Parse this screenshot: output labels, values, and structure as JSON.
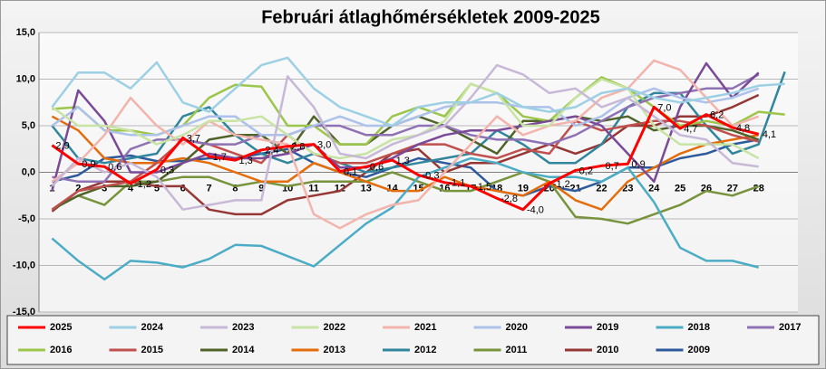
{
  "chart_data": {
    "type": "line",
    "title": "Februári átlaghőmérsékletek  2009-2025",
    "categories": [
      "1",
      "2",
      "3",
      "4",
      "5",
      "6",
      "7",
      "8",
      "9",
      "10",
      "11",
      "12",
      "13",
      "14",
      "15",
      "16",
      "17",
      "18",
      "19",
      "20",
      "21",
      "22",
      "23",
      "24",
      "25",
      "26",
      "27",
      "28",
      null
    ],
    "ylim": [
      -15,
      15
    ],
    "yticks": [
      {
        "value": -15,
        "label": "-15,0"
      },
      {
        "value": -10,
        "label": "-10,0"
      },
      {
        "value": -5,
        "label": "-5,0"
      },
      {
        "value": 0,
        "label": "0,0"
      },
      {
        "value": 5,
        "label": "5,0"
      },
      {
        "value": 10,
        "label": "10,0"
      },
      {
        "value": 15,
        "label": "15,0"
      }
    ],
    "grid": true,
    "legend": "bottom",
    "series": [
      {
        "name": "2025",
        "color": "#ff0000",
        "values": [
          2.9,
          0.9,
          0.6,
          -1.2,
          0.3,
          3.7,
          1.7,
          1.3,
          2.4,
          2.8,
          3.0,
          0.1,
          0.6,
          1.3,
          -0.3,
          -1.1,
          -1.5,
          -2.8,
          -4.0,
          -1.2,
          0.2,
          0.7,
          0.9,
          7.0,
          4.7,
          6.2,
          4.8,
          4.1,
          null
        ],
        "value_labels": [
          "2,9",
          "0,9",
          "0,6",
          "-1,2",
          "0,3",
          "3,7",
          "1,7",
          "1,3",
          "2,4",
          "2,8",
          "3,0",
          "0,1",
          "0,6",
          "1,3",
          "-0,3",
          "-1,1",
          "-1,5",
          "-2,8",
          "-4,0",
          "-1,2",
          "0,2",
          "0,7",
          "0,9",
          "7,0",
          "4,7",
          "6,2",
          "4,8",
          "4,1",
          null
        ]
      },
      {
        "name": "2024",
        "color": "#9dd0e4",
        "values": [
          7,
          10.7,
          10.7,
          9,
          11.8,
          7.5,
          6.5,
          9,
          11.5,
          12.3,
          9,
          7,
          6,
          5,
          7,
          7.5,
          7.5,
          8.5,
          7,
          6.5,
          7,
          8.5,
          9,
          8,
          7.5,
          8,
          8.5,
          9.3,
          9.5
        ]
      },
      {
        "name": "2023",
        "color": "#c8b8d8",
        "values": [
          -1.5,
          1.5,
          0,
          1,
          -0.5,
          -4,
          -3.5,
          -3,
          -3,
          10.3,
          7,
          2,
          1.5,
          3,
          4,
          5,
          8,
          11.5,
          10.5,
          8.5,
          9,
          7,
          8,
          6,
          4,
          3.5,
          1,
          0.6,
          null
        ]
      },
      {
        "name": "2022",
        "color": "#c8e4a4",
        "values": [
          7,
          5,
          5,
          4.5,
          3,
          4,
          5.5,
          5.5,
          6,
          4,
          2,
          1.5,
          2,
          3.5,
          4,
          5.5,
          9.5,
          8.5,
          5,
          5,
          8,
          10,
          9,
          5,
          3,
          3,
          3,
          1.5,
          null
        ]
      },
      {
        "name": "2021",
        "color": "#f2b4ac",
        "values": [
          -1,
          1,
          4,
          8,
          5,
          3,
          5.5,
          4,
          3.5,
          3,
          -4.5,
          -6,
          -4.5,
          -3.5,
          -3,
          0,
          3,
          6,
          4,
          5,
          5.5,
          8,
          9,
          12,
          11,
          8,
          5,
          6,
          null
        ]
      },
      {
        "name": "2020",
        "color": "#adc2ea",
        "values": [
          5,
          7,
          4.5,
          4,
          4,
          5,
          6,
          6,
          4,
          4,
          5,
          6,
          5,
          5,
          6,
          7,
          7.5,
          7.5,
          7,
          7,
          5,
          6,
          8,
          9,
          8,
          7.5,
          8,
          9,
          null
        ]
      },
      {
        "name": "2019",
        "color": "#7a4a98",
        "values": [
          -2,
          8.8,
          5.5,
          0,
          0,
          1,
          2,
          1.5,
          1.5,
          2,
          3,
          0.5,
          0.5,
          1.5,
          3,
          4,
          4.5,
          4.5,
          5,
          5.5,
          6,
          5,
          2,
          -1,
          7,
          11.7,
          8,
          10.7,
          null
        ]
      },
      {
        "name": "2018",
        "color": "#4bacc6",
        "values": [
          -7.1,
          -9.5,
          -11.5,
          -9.5,
          -9.7,
          -10.2,
          -9.3,
          -7.8,
          -7.9,
          -9,
          -10.1,
          -7.8,
          -5.5,
          -3.8,
          -0.5,
          0.5,
          1.5,
          1,
          0,
          -0.5,
          -0.5,
          -1,
          0.5,
          -3.2,
          -8.1,
          -9.5,
          -9.5,
          -10.2,
          null
        ]
      },
      {
        "name": "2017",
        "color": "#8f72b4",
        "values": [
          -0.5,
          -1,
          -1,
          2.5,
          3.5,
          3.5,
          3,
          3,
          4,
          4,
          5,
          5,
          4,
          4,
          5,
          5,
          4,
          3.5,
          3.5,
          3,
          4,
          5.5,
          7,
          8,
          8.5,
          9,
          9,
          10.5,
          null
        ]
      },
      {
        "name": "2016",
        "color": "#9bc64a",
        "values": [
          6.8,
          7,
          4.5,
          4.5,
          4,
          5,
          8,
          9.4,
          9.2,
          5,
          5,
          3,
          3,
          6,
          7,
          6,
          9.5,
          8.5,
          6,
          5.5,
          8,
          10.2,
          9,
          7,
          5,
          5.5,
          5,
          6.5,
          6.2
        ]
      },
      {
        "name": "2015",
        "color": "#c0504d",
        "values": [
          -4,
          -2,
          -1.5,
          -1,
          1,
          3.5,
          3,
          2,
          1,
          4,
          2,
          1,
          1,
          2,
          3,
          3,
          2,
          1.5,
          2.5,
          2,
          5.5,
          4.5,
          5,
          5.5,
          5.5,
          5,
          4,
          3.3,
          null
        ]
      },
      {
        "name": "2014",
        "color": "#4f6228",
        "values": [
          -4,
          -2.5,
          -1.5,
          -1.5,
          -1,
          1,
          3.5,
          4,
          4,
          2,
          6,
          3,
          3,
          5,
          6,
          5,
          3.5,
          2,
          5.5,
          5.5,
          6,
          5.5,
          6,
          4.5,
          5,
          5,
          4.5,
          3.5,
          null
        ]
      },
      {
        "name": "2013",
        "color": "#e46c0a",
        "values": [
          6,
          4.5,
          1.5,
          1,
          1,
          1.5,
          1,
          0,
          -1,
          -1,
          1,
          0,
          -1,
          -2,
          -2,
          -0.5,
          -1.5,
          -2,
          -2.5,
          -1,
          -3,
          -4,
          -1,
          0.5,
          2,
          3,
          3.5,
          4,
          null
        ]
      },
      {
        "name": "2012",
        "color": "#31859c",
        "values": [
          5,
          1.5,
          1,
          1.5,
          2,
          6,
          7,
          4,
          2,
          1,
          2,
          1,
          0,
          0.5,
          1,
          1.5,
          2,
          4.5,
          3,
          1,
          1,
          3,
          7,
          8.5,
          8.5,
          5,
          2,
          3,
          10.8
        ]
      },
      {
        "name": "2011",
        "color": "#77933c",
        "values": [
          -4,
          -2.5,
          -3.5,
          -1,
          -1,
          -0.5,
          -0.5,
          -1.5,
          -1,
          -1.5,
          -1,
          -1,
          -1,
          0,
          -1,
          -2,
          -2,
          -1,
          0,
          -1,
          -4.8,
          -5,
          -5.5,
          -4.5,
          -3.5,
          -2,
          -2.5,
          -1.5,
          null
        ]
      },
      {
        "name": "2010",
        "color": "#953735",
        "values": [
          -4.2,
          -2,
          -1,
          -1,
          -1.5,
          -1.5,
          -4,
          -4.5,
          -4.5,
          -3,
          -2.5,
          -2,
          0,
          2,
          2.5,
          0,
          1,
          1,
          2,
          3,
          2,
          3,
          5,
          5,
          6,
          6,
          7,
          8.3,
          null
        ]
      },
      {
        "name": "2009",
        "color": "#2e5a9c",
        "values": [
          -1,
          -0.3,
          1.5,
          1.8,
          1.2,
          1.2,
          1.5,
          1.5,
          2,
          2.5,
          1,
          0,
          -0.5,
          0.5,
          1.5,
          1,
          0.5,
          -2,
          -2.5,
          -1.5,
          -2,
          -1,
          0.5,
          0.5,
          1.5,
          2,
          3,
          3.5,
          null
        ]
      }
    ]
  }
}
